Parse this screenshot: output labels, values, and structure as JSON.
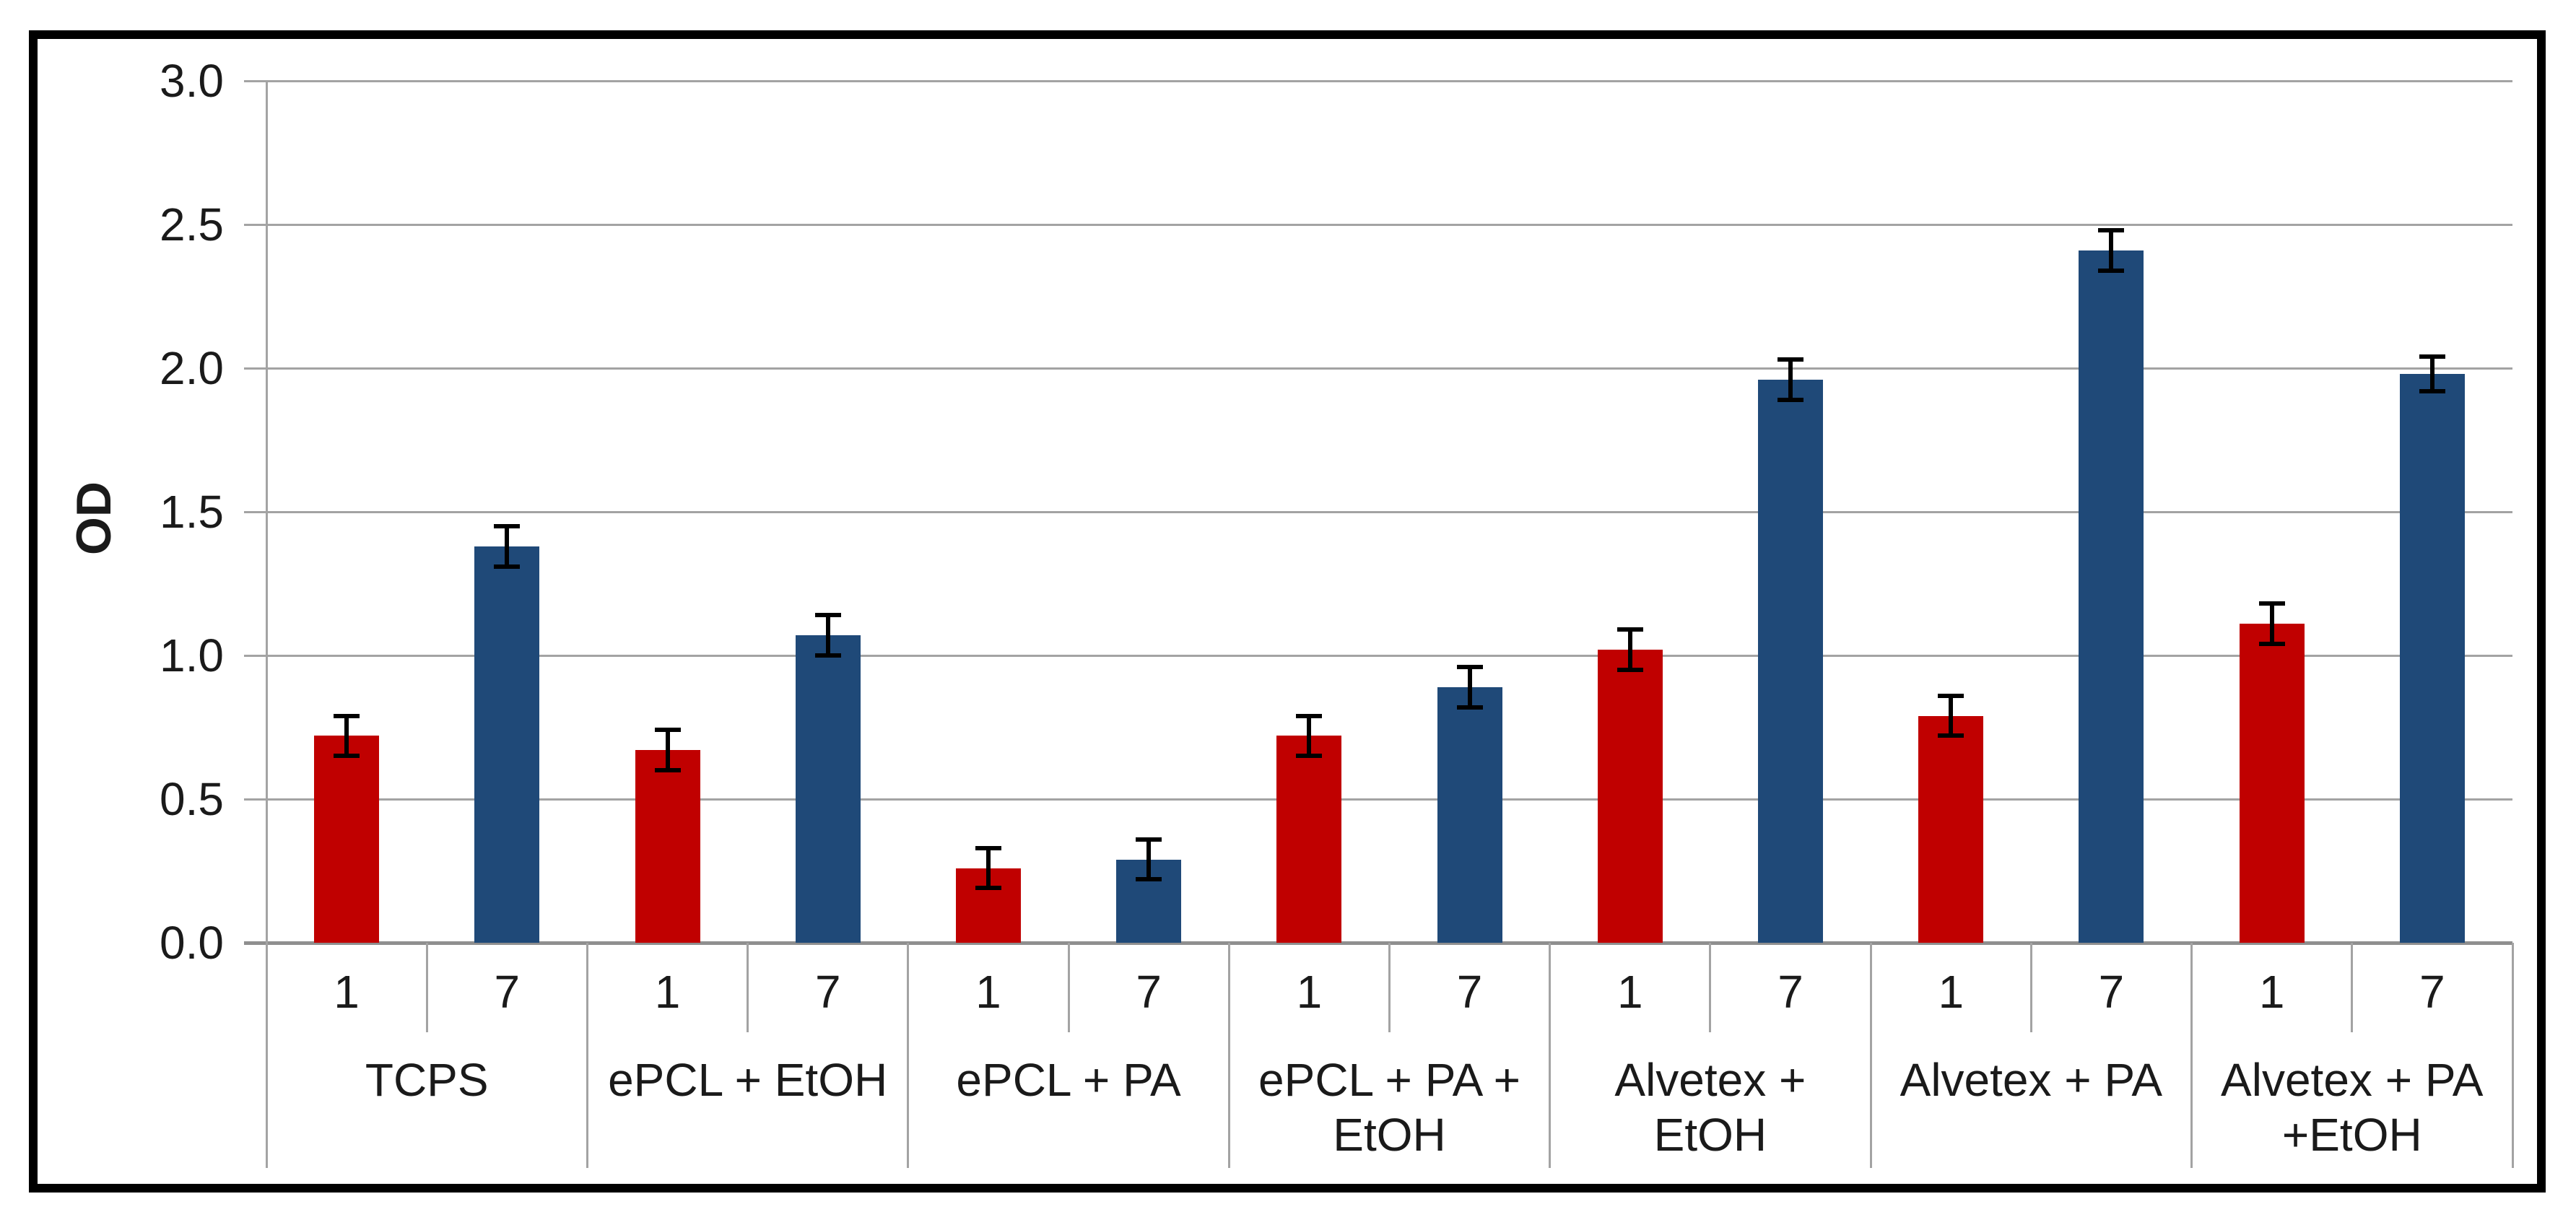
{
  "figure": {
    "background": "#FFFFFF",
    "border_color": "#000000"
  },
  "chart_data": {
    "type": "bar",
    "title": "",
    "xlabel": "",
    "ylabel": "OD",
    "ylim": [
      0.0,
      3.0
    ],
    "grid": true,
    "legend": "none",
    "gridline_color": "#A3A3A3",
    "axis_color": "#8F8F8F",
    "error_bar_color": "#000000",
    "day_labels": [
      "1",
      "7"
    ],
    "yticks": [
      {
        "value": 0.0,
        "label": "0.0"
      },
      {
        "value": 0.5,
        "label": "0.5"
      },
      {
        "value": 1.0,
        "label": "1.0"
      },
      {
        "value": 1.5,
        "label": "1.5"
      },
      {
        "value": 2.0,
        "label": "2.0"
      },
      {
        "value": 2.5,
        "label": "2.5"
      },
      {
        "value": 3.0,
        "label": "3.0"
      }
    ],
    "series": [
      {
        "name": "1",
        "color": "#C00000"
      },
      {
        "name": "7",
        "color": "#1F4978"
      }
    ],
    "groups": [
      {
        "label": "TCPS",
        "label_lines": [
          "TCPS"
        ],
        "values": [
          0.72,
          1.38
        ],
        "errors": [
          0.07,
          0.07
        ]
      },
      {
        "label": "ePCL + EtOH",
        "label_lines": [
          "ePCL + EtOH"
        ],
        "values": [
          0.67,
          1.07
        ],
        "errors": [
          0.07,
          0.07
        ]
      },
      {
        "label": "ePCL + PA",
        "label_lines": [
          "ePCL + PA"
        ],
        "values": [
          0.26,
          0.29
        ],
        "errors": [
          0.07,
          0.07
        ]
      },
      {
        "label": "ePCL + PA + EtOH",
        "label_lines": [
          "ePCL + PA +",
          "EtOH"
        ],
        "values": [
          0.72,
          0.89
        ],
        "errors": [
          0.07,
          0.07
        ]
      },
      {
        "label": "Alvetex + EtOH",
        "label_lines": [
          "Alvetex +",
          "EtOH"
        ],
        "values": [
          1.02,
          1.96
        ],
        "errors": [
          0.07,
          0.07
        ]
      },
      {
        "label": "Alvetex + PA",
        "label_lines": [
          "Alvetex + PA"
        ],
        "values": [
          0.79,
          2.41
        ],
        "errors": [
          0.07,
          0.07
        ]
      },
      {
        "label": "Alvetex + PA +EtOH",
        "label_lines": [
          "Alvetex + PA",
          "+EtOH"
        ],
        "values": [
          1.11,
          1.98
        ],
        "errors": [
          0.07,
          0.06
        ]
      }
    ]
  }
}
